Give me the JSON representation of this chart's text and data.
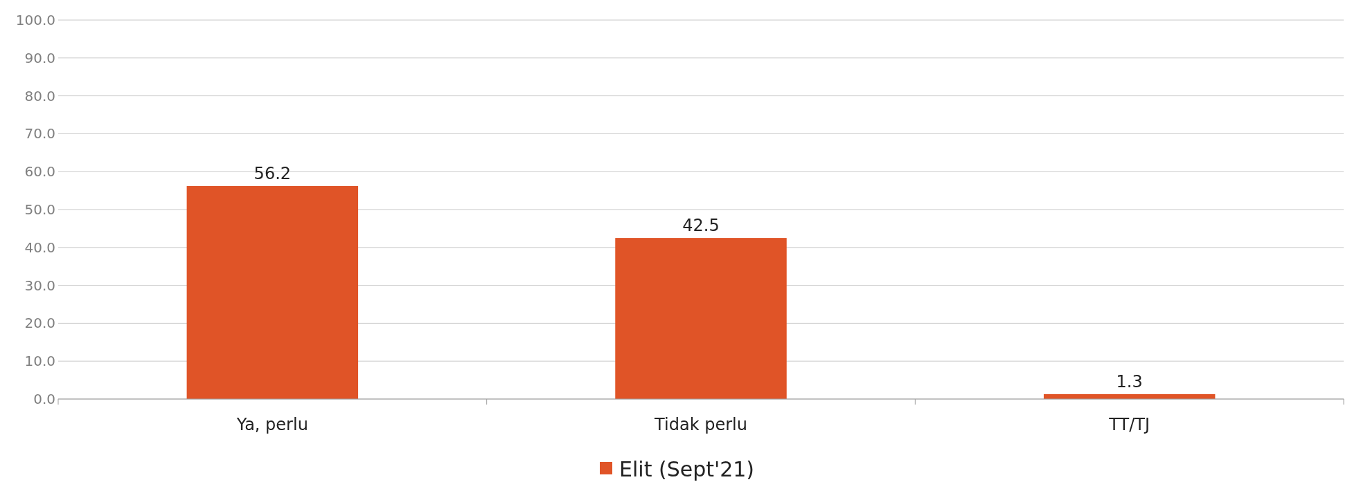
{
  "chart_data": {
    "type": "bar",
    "categories": [
      "Ya, perlu",
      "Tidak perlu",
      "TT/TJ"
    ],
    "series": [
      {
        "name": "Elit (Sept'21)",
        "color": "#e05427",
        "values": [
          56.2,
          42.5,
          1.3
        ]
      }
    ],
    "ylim": [
      0,
      100
    ],
    "yticks": [
      {
        "value": 0,
        "label": "0.0"
      },
      {
        "value": 10,
        "label": "10.0"
      },
      {
        "value": 20,
        "label": "20.0"
      },
      {
        "value": 30,
        "label": "30.0"
      },
      {
        "value": 40,
        "label": "40.0"
      },
      {
        "value": 50,
        "label": "50.0"
      },
      {
        "value": 60,
        "label": "60.0"
      },
      {
        "value": 70,
        "label": "70.0"
      },
      {
        "value": 80,
        "label": "80.0"
      },
      {
        "value": 90,
        "label": "90.0"
      },
      {
        "value": 100,
        "label": "100.0"
      }
    ],
    "grid": "y",
    "legend": "bottom",
    "data_labels": true
  }
}
